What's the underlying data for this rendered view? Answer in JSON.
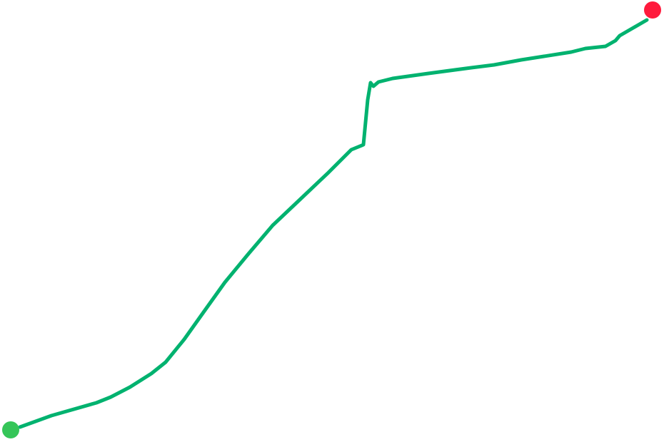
{
  "route": {
    "line_color": "#00b26f",
    "start_marker": {
      "label": "start",
      "color": "#35c558"
    },
    "end_marker": {
      "label": "end",
      "color": "#ff1a3c"
    }
  }
}
